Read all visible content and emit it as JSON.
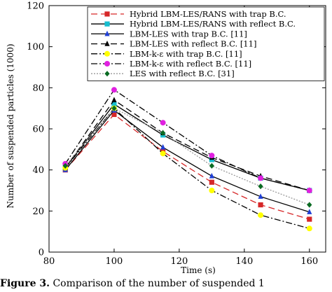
{
  "caption": {
    "label": "Figure 3.",
    "text": "Comparison of the number of suspended 1"
  },
  "chart_data": {
    "type": "line",
    "xlabel": "Time (s)",
    "ylabel": "Number of suspended particles (1000)",
    "xlim": [
      80,
      165
    ],
    "ylim": [
      0,
      120
    ],
    "xticks": [
      80,
      100,
      120,
      140,
      160
    ],
    "yticks": [
      0,
      20,
      40,
      60,
      80,
      100,
      120
    ],
    "grid": false,
    "legend_position": "top-right",
    "x": [
      85,
      100,
      115,
      130,
      145,
      160
    ],
    "series": [
      {
        "name": "Hybrid LBM-LES/RANS with trap B.C.",
        "color": "#d62728",
        "dash": "9,5",
        "marker": "square",
        "values": [
          40,
          67,
          49,
          34,
          23,
          16
        ]
      },
      {
        "name": "Hybrid LBM-LES/RANS with reflect B.C.",
        "color": "#000000",
        "dash": "",
        "marker": "square",
        "marker_color": "#17becf",
        "values": [
          41,
          72,
          57,
          45,
          36,
          30
        ]
      },
      {
        "name": "LBM-LES with trap B.C. [11]",
        "color": "#000000",
        "dash": "",
        "marker": "triangle",
        "marker_color": "#1f3fd6",
        "values": [
          40,
          69,
          51,
          37,
          27,
          19.5
        ]
      },
      {
        "name": "LBM-LES with reflect B.C. [11]",
        "color": "#000000",
        "dash": "9,5",
        "marker": "triangle",
        "marker_color": "#000000",
        "values": [
          41,
          74,
          58,
          46,
          37,
          30
        ]
      },
      {
        "name": "LBM-k-ε with trap B.C. [11]",
        "color": "#000000",
        "dash": "9,3,2,3",
        "marker": "circle",
        "marker_color": "#ffff00",
        "values": [
          41,
          70,
          48,
          30,
          18,
          11.5
        ]
      },
      {
        "name": "LBM-k-ε with reflect B.C. [11]",
        "color": "#000000",
        "dash": "9,3,2,3",
        "marker": "circle",
        "marker_color": "#e020e0",
        "values": [
          43,
          79,
          63,
          47,
          36,
          30
        ]
      },
      {
        "name": "LES with reflect B.C. [31]",
        "color": "#999999",
        "dash": "2,2",
        "marker": "diamond",
        "marker_color": "#0a6b22",
        "values": [
          42,
          70,
          58,
          42,
          32,
          23
        ]
      }
    ]
  }
}
